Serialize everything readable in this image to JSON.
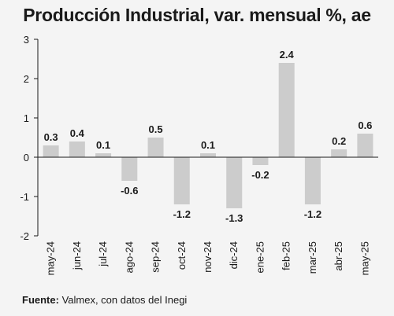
{
  "chart_data": {
    "type": "bar",
    "title": "Producción Industrial, var. mensual %, ae",
    "categories": [
      "may-24",
      "jun-24",
      "jul-24",
      "ago-24",
      "sep-24",
      "oct-24",
      "nov-24",
      "dic-24",
      "ene-25",
      "feb-25",
      "mar-25",
      "abr-25",
      "may-25"
    ],
    "values": [
      0.3,
      0.4,
      0.1,
      -0.6,
      0.5,
      -1.2,
      0.1,
      -1.3,
      -0.2,
      2.4,
      -1.2,
      0.2,
      0.6
    ],
    "value_labels": [
      "0.3",
      "0.4",
      "0.1",
      "-0.6",
      "0.5",
      "-1.2",
      "0.1",
      "-1.3",
      "-0.2",
      "2.4",
      "-1.2",
      "0.2",
      "0.6"
    ],
    "ylim": [
      -2,
      3
    ],
    "yticks": [
      -2,
      -1,
      0,
      1,
      2,
      3
    ],
    "ytick_labels": [
      "-2",
      "-1",
      "0",
      "1",
      "2",
      "3"
    ],
    "grid": false,
    "bar_color": "#cccccc",
    "axis_color": "#1a1a1a"
  },
  "source": {
    "label": "Fuente:",
    "text": " Valmex, con datos del Inegi"
  }
}
